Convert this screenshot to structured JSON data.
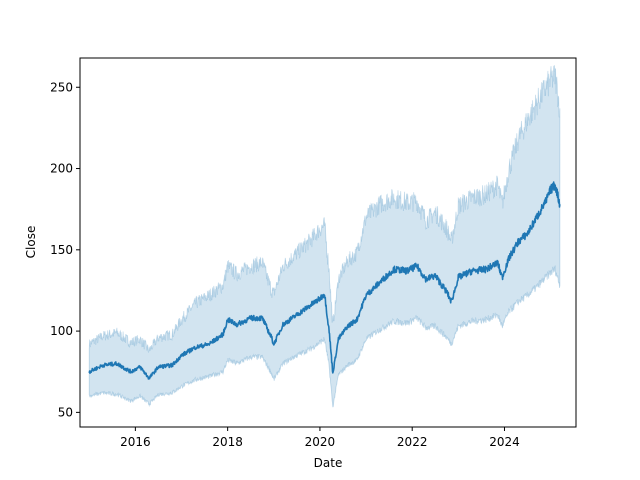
{
  "chart_data": {
    "type": "line",
    "title": "",
    "xlabel": "Date",
    "ylabel": "Close",
    "xlim": [
      2014.8,
      2025.55
    ],
    "ylim": [
      41,
      268
    ],
    "x_ticks": [
      2016,
      2018,
      2020,
      2022,
      2024
    ],
    "x_tick_labels": [
      "2016",
      "2018",
      "2020",
      "2022",
      "2024"
    ],
    "y_ticks": [
      50,
      100,
      150,
      200,
      250
    ],
    "y_tick_labels": [
      "50",
      "100",
      "150",
      "200",
      "250"
    ],
    "grid": false,
    "legend": "none",
    "colors": {
      "line": "#1f77b4",
      "band": "#1f77b4",
      "band_opacity": 0.2
    },
    "series": [
      {
        "x": [
          2015.0,
          2015.3,
          2015.6,
          2015.9,
          2016.1,
          2016.3,
          2016.5,
          2016.8,
          2017.0,
          2017.3,
          2017.6,
          2017.9,
          2018.0,
          2018.2,
          2018.5,
          2018.75,
          2018.95,
          2019.0,
          2019.2,
          2019.5,
          2019.8,
          2020.0,
          2020.1,
          2020.2,
          2020.28,
          2020.4,
          2020.6,
          2020.8,
          2021.0,
          2021.3,
          2021.6,
          2021.9,
          2022.1,
          2022.3,
          2022.5,
          2022.75,
          2022.85,
          2023.0,
          2023.3,
          2023.6,
          2023.85,
          2023.95,
          2024.1,
          2024.3,
          2024.5,
          2024.7,
          2024.9,
          2025.0,
          2025.1,
          2025.2
        ],
        "mean": [
          75,
          79,
          80,
          75,
          78,
          71,
          78,
          79,
          85,
          90,
          92,
          98,
          107,
          104,
          108,
          108,
          96,
          92,
          104,
          110,
          116,
          120,
          123,
          100,
          74,
          95,
          103,
          107,
          122,
          130,
          138,
          137,
          140,
          132,
          134,
          124,
          118,
          133,
          137,
          138,
          142,
          133,
          145,
          155,
          160,
          170,
          180,
          187,
          190,
          178
        ],
        "lower": [
          60,
          62,
          61,
          57,
          60,
          55,
          61,
          62,
          66,
          70,
          72,
          75,
          82,
          80,
          84,
          84,
          74,
          70,
          80,
          85,
          89,
          93,
          95,
          78,
          53,
          73,
          79,
          82,
          95,
          101,
          106,
          105,
          108,
          102,
          103,
          96,
          92,
          103,
          106,
          107,
          110,
          103,
          112,
          118,
          122,
          127,
          133,
          136,
          138,
          128
        ],
        "upper": [
          92,
          97,
          99,
          93,
          95,
          88,
          96,
          98,
          107,
          117,
          122,
          128,
          140,
          135,
          140,
          142,
          125,
          123,
          140,
          148,
          156,
          163,
          165,
          137,
          103,
          132,
          143,
          148,
          170,
          178,
          182,
          179,
          180,
          168,
          173,
          163,
          155,
          177,
          182,
          184,
          190,
          178,
          200,
          218,
          230,
          240,
          250,
          254,
          257,
          237
        ]
      }
    ]
  }
}
